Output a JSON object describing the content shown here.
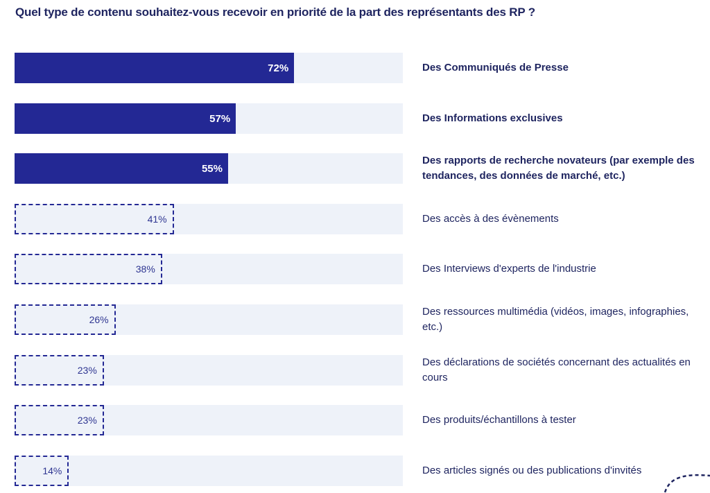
{
  "chart_data": {
    "type": "bar",
    "orientation": "horizontal",
    "title": "Quel type de contenu souhaitez-vous recevoir en priorité de la part des représentants des RP ?",
    "xlabel": "",
    "ylabel": "",
    "xlim": [
      0,
      100
    ],
    "unit": "%",
    "grid": false,
    "categories": [
      "Des Communiqués de Presse",
      "Des Informations exclusives",
      "Des rapports de recherche novateurs (par exemple des tendances, des données de marché, etc.)",
      "Des accès à des évènements",
      "Des Interviews d'experts de l'industrie",
      "Des ressources multimédia (vidéos, images, infographies, etc.)",
      "Des déclarations de sociétés concernant des actualités en cours",
      "Des produits/échantillons à tester",
      "Des articles signés ou des publications d'invités"
    ],
    "values": [
      72,
      57,
      55,
      41,
      38,
      26,
      23,
      23,
      14
    ],
    "value_labels": [
      "72%",
      "57%",
      "55%",
      "41%",
      "38%",
      "26%",
      "23%",
      "23%",
      "14%"
    ],
    "highlighted_top": 3,
    "styles": {
      "highlighted": "solid",
      "other": "dashed-outline"
    }
  },
  "colors": {
    "primary": "#232894",
    "track": "#eef2f9",
    "text": "#1f2560",
    "background": "#ffffff"
  },
  "decorations": {
    "corner_icon": "dashed-curve-icon"
  }
}
